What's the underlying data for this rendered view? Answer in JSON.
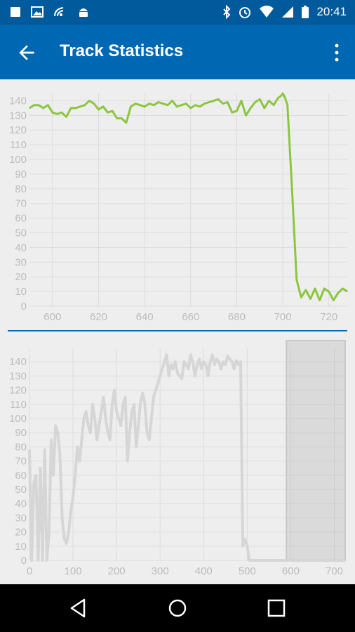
{
  "status_bar": {
    "time": "20:41",
    "left_icons": [
      "square-icon",
      "image-icon",
      "wifi-signal-icon",
      "android-icon"
    ],
    "right_icons": [
      "bluetooth-icon",
      "alarm-icon",
      "wifi-icon",
      "cell-signal-icon",
      "battery-icon"
    ]
  },
  "app_bar": {
    "title": "Track Statistics",
    "color": "#0067b3"
  },
  "chart_data": [
    {
      "type": "line",
      "color": "#8cc63f",
      "x": [
        590,
        592,
        594,
        596,
        598,
        600,
        602,
        604,
        606,
        608,
        610,
        612,
        614,
        616,
        618,
        620,
        622,
        624,
        626,
        628,
        630,
        632,
        634,
        636,
        638,
        640,
        642,
        644,
        646,
        648,
        650,
        652,
        654,
        656,
        658,
        660,
        662,
        664,
        666,
        668,
        670,
        672,
        674,
        676,
        678,
        680,
        682,
        684,
        686,
        688,
        690,
        692,
        694,
        696,
        698,
        699,
        700,
        701,
        702,
        704,
        706,
        708,
        710,
        712,
        714,
        716,
        718,
        720,
        722,
        724,
        726,
        728
      ],
      "y": [
        135,
        137,
        137,
        135,
        137,
        132,
        131,
        132,
        129,
        135,
        135,
        136,
        137,
        140,
        138,
        134,
        136,
        132,
        133,
        128,
        128,
        125,
        136,
        138,
        137,
        136,
        138,
        137,
        139,
        138,
        137,
        140,
        136,
        137,
        138,
        135,
        137,
        136,
        138,
        139,
        140,
        141,
        138,
        139,
        132,
        133,
        140,
        130,
        135,
        139,
        141,
        135,
        140,
        137,
        142,
        143,
        145,
        142,
        137,
        80,
        18,
        6,
        11,
        5,
        12,
        4,
        12,
        10,
        4,
        9,
        12,
        10
      ],
      "xlim": [
        590,
        728
      ],
      "ylim": [
        0,
        145
      ],
      "xticks": [
        "600",
        "620",
        "640",
        "660",
        "680",
        "700",
        "720"
      ],
      "yticks": [
        "0",
        "10",
        "20",
        "30",
        "40",
        "50",
        "60",
        "70",
        "80",
        "90",
        "100",
        "110",
        "120",
        "130",
        "140"
      ]
    },
    {
      "type": "area",
      "color": "#d6d6d6",
      "x": [
        0,
        5,
        10,
        15,
        20,
        25,
        30,
        35,
        40,
        45,
        50,
        55,
        60,
        65,
        70,
        75,
        80,
        85,
        90,
        95,
        100,
        105,
        110,
        115,
        120,
        125,
        130,
        135,
        140,
        145,
        150,
        155,
        160,
        165,
        170,
        175,
        180,
        185,
        190,
        195,
        200,
        205,
        210,
        215,
        220,
        225,
        230,
        235,
        240,
        245,
        250,
        255,
        260,
        265,
        270,
        275,
        280,
        285,
        290,
        295,
        300,
        305,
        310,
        315,
        320,
        325,
        330,
        335,
        340,
        345,
        350,
        355,
        360,
        365,
        370,
        375,
        380,
        385,
        390,
        395,
        400,
        405,
        410,
        415,
        420,
        425,
        430,
        435,
        440,
        445,
        450,
        455,
        460,
        465,
        470,
        475,
        480,
        485,
        490,
        495,
        500,
        505,
        510,
        515,
        520,
        525,
        530,
        535,
        540,
        545,
        550,
        555,
        560,
        565,
        570,
        575,
        580,
        585,
        590,
        595,
        600,
        605,
        610,
        615,
        620,
        625,
        630,
        635,
        640,
        645,
        650,
        655,
        660,
        665,
        670,
        675,
        680,
        685,
        690,
        695,
        700,
        705,
        710,
        715,
        720,
        725
      ],
      "y": [
        78,
        0,
        55,
        60,
        0,
        65,
        0,
        78,
        0,
        20,
        85,
        60,
        95,
        90,
        75,
        30,
        15,
        12,
        20,
        35,
        45,
        60,
        80,
        70,
        85,
        100,
        105,
        95,
        90,
        110,
        100,
        85,
        95,
        105,
        115,
        100,
        90,
        85,
        110,
        120,
        105,
        100,
        95,
        110,
        115,
        70,
        90,
        105,
        110,
        80,
        95,
        112,
        118,
        110,
        90,
        85,
        100,
        115,
        120,
        125,
        130,
        135,
        140,
        145,
        130,
        138,
        135,
        140,
        132,
        130,
        128,
        140,
        138,
        135,
        145,
        140,
        130,
        138,
        142,
        135,
        140,
        138,
        130,
        140,
        145,
        138,
        142,
        140,
        135,
        140,
        138,
        144,
        142,
        140,
        135,
        141,
        138,
        140,
        10,
        15,
        10,
        0,
        0,
        0,
        0,
        0,
        0,
        0,
        0,
        0,
        0,
        0,
        0,
        0,
        0,
        0,
        0,
        0,
        0,
        0,
        0,
        0,
        0,
        0,
        0,
        0,
        0,
        0,
        0,
        0,
        0,
        0,
        0,
        0,
        0,
        0,
        0,
        0,
        0,
        0,
        0,
        0,
        0,
        0,
        0,
        0
      ],
      "xlim": [
        0,
        725
      ],
      "ylim": [
        0,
        150
      ],
      "xticks": [
        "0",
        "100",
        "200",
        "300",
        "400",
        "500",
        "600",
        "700"
      ],
      "yticks": [
        "0",
        "10",
        "20",
        "30",
        "40",
        "50",
        "60",
        "70",
        "80",
        "90",
        "100",
        "110",
        "120",
        "130",
        "140"
      ],
      "highlight_range": [
        590,
        728
      ]
    }
  ],
  "nav_bar": {
    "buttons": [
      "back-nav",
      "home-nav",
      "recents-nav"
    ]
  }
}
